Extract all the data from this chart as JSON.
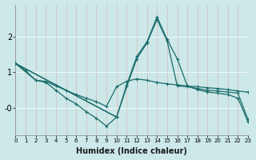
{
  "xlabel": "Humidex (Indice chaleur)",
  "bg_color": "#cce8e8",
  "grid_color": "#b0d4d4",
  "line_color": "#1a6b6b",
  "x_values": [
    0,
    1,
    2,
    3,
    4,
    5,
    6,
    7,
    8,
    9,
    10,
    11,
    12,
    13,
    14,
    15,
    16,
    17,
    18,
    19,
    20,
    21,
    22,
    23
  ],
  "series1": [
    1.25,
    1.05,
    0.78,
    0.75,
    0.62,
    0.5,
    0.38,
    0.28,
    0.18,
    0.05,
    0.6,
    0.75,
    0.82,
    0.78,
    0.72,
    0.68,
    0.65,
    0.62,
    0.6,
    0.57,
    0.55,
    0.52,
    0.48,
    0.45
  ],
  "series2_x": [
    0,
    2,
    3,
    4,
    5,
    6,
    7,
    8,
    9,
    10
  ],
  "series2_y": [
    1.25,
    0.78,
    0.72,
    0.5,
    0.28,
    0.12,
    -0.1,
    -0.28,
    -0.5,
    -0.25
  ],
  "series3_x": [
    0,
    10,
    11,
    12,
    13,
    14,
    15,
    16,
    17,
    18,
    19,
    20,
    21,
    22,
    23
  ],
  "series3_y": [
    1.25,
    -0.25,
    0.65,
    1.45,
    1.85,
    2.55,
    1.92,
    1.38,
    0.62,
    0.52,
    0.45,
    0.42,
    0.38,
    0.28,
    -0.38
  ],
  "series4_x": [
    0,
    10,
    11,
    12,
    13,
    14,
    15,
    16,
    17,
    18,
    19,
    20,
    21,
    22,
    23
  ],
  "series4_y": [
    1.25,
    -0.25,
    0.6,
    1.38,
    1.82,
    2.48,
    1.88,
    0.62,
    0.6,
    0.55,
    0.5,
    0.48,
    0.45,
    0.42,
    -0.32
  ],
  "ylim": [
    -0.75,
    2.9
  ],
  "ytick_vals": [
    0,
    1,
    2
  ],
  "ytick_labels": [
    "-0",
    "1",
    "2"
  ],
  "xlim": [
    0,
    23
  ],
  "xticks": [
    0,
    1,
    2,
    3,
    4,
    5,
    6,
    7,
    8,
    9,
    10,
    11,
    12,
    13,
    14,
    15,
    16,
    17,
    18,
    19,
    20,
    21,
    22,
    23
  ]
}
